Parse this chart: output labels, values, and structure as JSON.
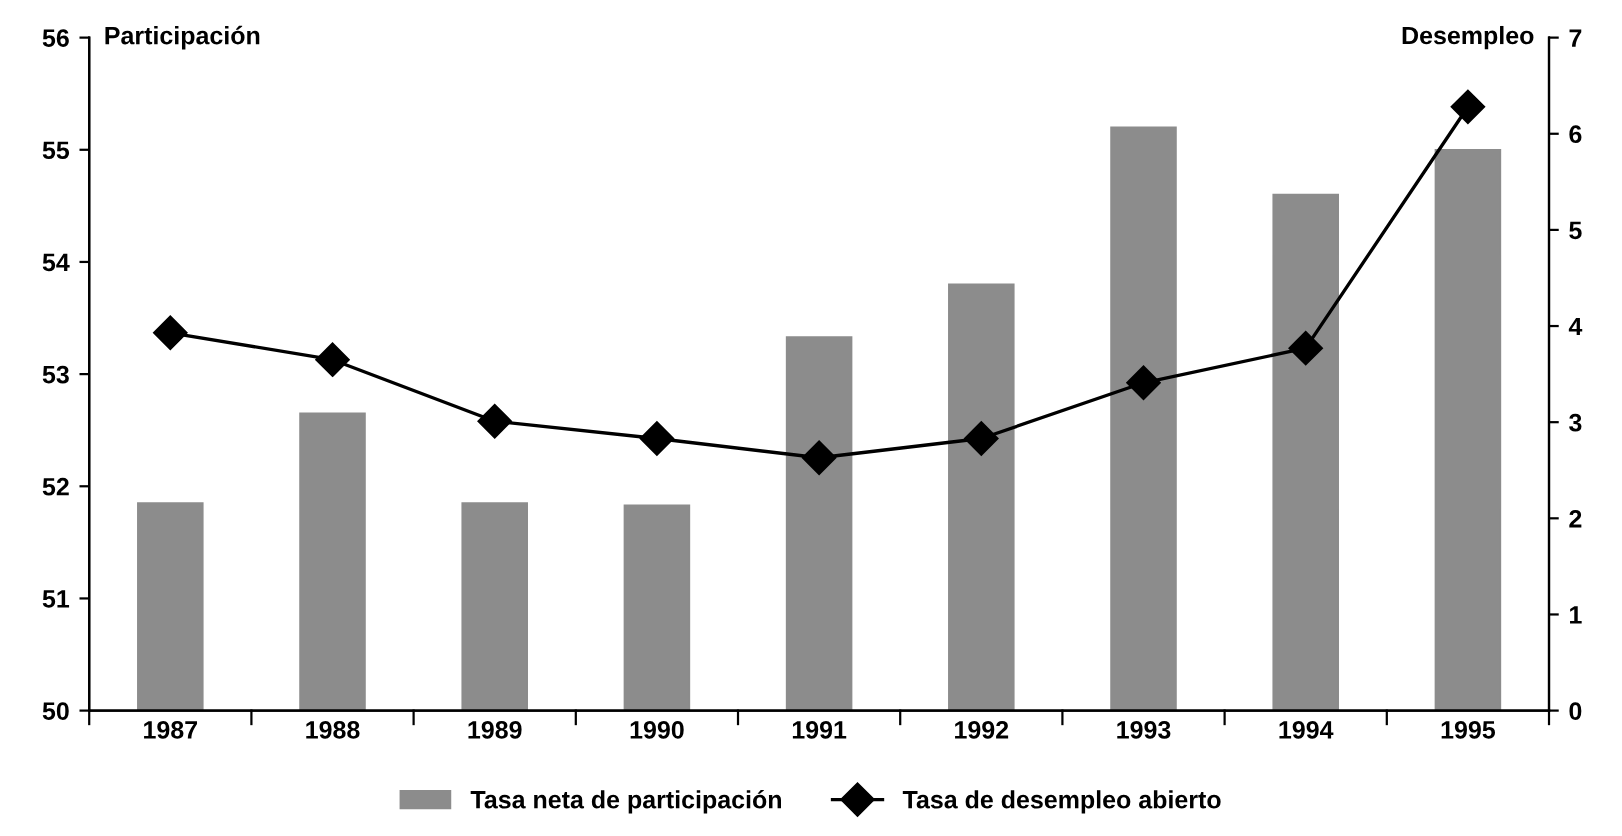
{
  "chart_data": {
    "type": "bar",
    "categories": [
      "1987",
      "1988",
      "1989",
      "1990",
      "1991",
      "1992",
      "1993",
      "1994",
      "1995"
    ],
    "ylabel": "Participación",
    "y2label": "Desempleo",
    "ylim": [
      50,
      56
    ],
    "yticks": [
      50,
      51,
      52,
      53,
      54,
      55,
      56
    ],
    "y2lim": [
      0,
      7
    ],
    "y2ticks": [
      0,
      1,
      2,
      3,
      4,
      5,
      6,
      7
    ],
    "grid": false,
    "legend": "bottom",
    "marker": "diamond",
    "series": [
      {
        "name": "Tasa neta de participación",
        "color": "#8c8c8c",
        "values": [
          51.85,
          52.65,
          51.85,
          51.83,
          53.33,
          53.8,
          55.2,
          54.6,
          55.0
        ]
      },
      {
        "name": "Tasa de desempleo abierto",
        "type": "line",
        "axis": "y2",
        "color": "#000000",
        "values": [
          3.93,
          3.65,
          3.01,
          2.83,
          2.63,
          2.83,
          3.41,
          3.77,
          6.28
        ]
      }
    ]
  }
}
